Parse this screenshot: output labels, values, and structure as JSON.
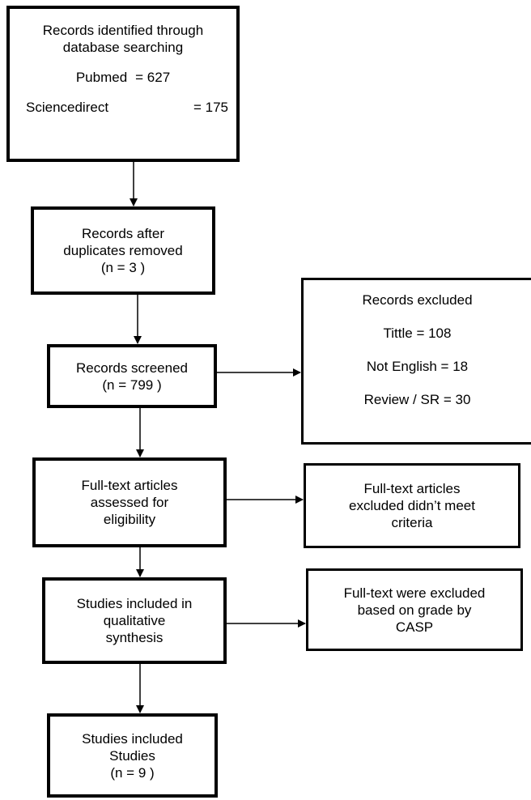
{
  "identified": {
    "title_line1": "Records identified through",
    "title_line2": "database searching",
    "pubmed_label": "Pubmed",
    "pubmed_value": "= 627",
    "sciencedirect_label": "Sciencedirect",
    "sciencedirect_value": "= 175"
  },
  "duplicates": {
    "line1": "Records after",
    "line2": "duplicates removed",
    "line3": "(n = 3 )"
  },
  "screened": {
    "line1": "Records screened",
    "line2": "(n = 799 )"
  },
  "excluded": {
    "title": "Records excluded",
    "tittle": "Tittle = 108",
    "not_english": "Not English = 18",
    "review": "Review / SR = 30"
  },
  "fulltext": {
    "line1": "Full-text articles",
    "line2": "assessed for",
    "line3": "eligibility"
  },
  "fulltext_excluded": {
    "line1": "Full-text articles",
    "line2": "excluded didn’t meet",
    "line3": "criteria"
  },
  "qualitative": {
    "line1": "Studies included in",
    "line2": "qualitative",
    "line3": "synthesis"
  },
  "casp": {
    "line1": "Full-text were excluded",
    "line2": "based on grade by",
    "line3": "CASP"
  },
  "final": {
    "line1": "Studies included",
    "line2": "Studies",
    "line3": "(n = 9 )"
  }
}
